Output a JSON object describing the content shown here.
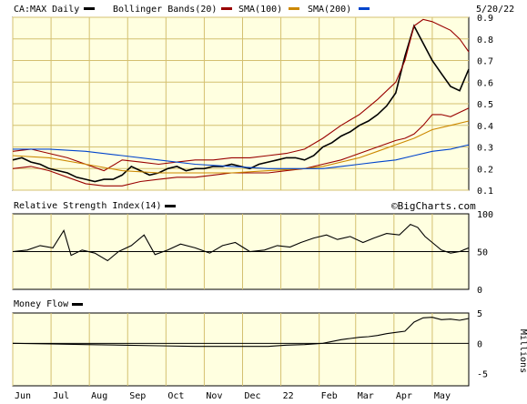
{
  "chart_data": [
    {
      "type": "line",
      "panel": "price",
      "title": "CA:MAX Daily",
      "date_label": "5/20/22",
      "ylim": [
        0.1,
        0.9
      ],
      "yticks": [
        "0.9",
        "0.8",
        "0.7",
        "0.6",
        "0.5",
        "0.4",
        "0.3",
        "0.2",
        "0.1"
      ],
      "grid": true,
      "legend_placement": "top",
      "legend": [
        {
          "name": "CA:MAX Daily",
          "color": "#000000"
        },
        {
          "name": "Bollinger Bands(20)",
          "color": "#990000"
        },
        {
          "name": "SMA(100)",
          "color": "#cc8800"
        },
        {
          "name": "SMA(200)",
          "color": "#0044cc"
        }
      ],
      "x_months": [
        "Jun",
        "Jul",
        "Aug",
        "Sep",
        "Oct",
        "Nov",
        "Dec",
        "22",
        "Feb",
        "Mar",
        "Apr",
        "May"
      ],
      "series": [
        {
          "name": "CA:MAX Daily",
          "color": "#000000",
          "x": [
            0,
            5,
            10,
            15,
            20,
            25,
            30,
            35,
            40,
            45,
            50,
            55,
            60,
            65,
            70,
            75,
            80,
            85,
            90,
            95,
            100,
            105,
            110,
            115,
            120,
            125,
            130,
            135,
            140,
            145,
            150,
            155,
            160,
            165,
            170,
            175,
            180,
            185,
            190,
            195,
            200,
            205,
            210,
            215,
            220,
            225,
            230,
            235,
            240,
            245,
            250
          ],
          "values": [
            0.24,
            0.25,
            0.23,
            0.22,
            0.2,
            0.19,
            0.18,
            0.16,
            0.15,
            0.14,
            0.15,
            0.15,
            0.17,
            0.21,
            0.19,
            0.17,
            0.18,
            0.2,
            0.21,
            0.19,
            0.2,
            0.2,
            0.21,
            0.21,
            0.22,
            0.21,
            0.2,
            0.22,
            0.23,
            0.24,
            0.25,
            0.25,
            0.24,
            0.26,
            0.3,
            0.32,
            0.35,
            0.37,
            0.4,
            0.42,
            0.45,
            0.49,
            0.55,
            0.72,
            0.86,
            0.78,
            0.7,
            0.64,
            0.58,
            0.56,
            0.66
          ]
        },
        {
          "name": "Bollinger Bands(20)",
          "color": "#990000",
          "x": [
            0,
            10,
            20,
            30,
            40,
            50,
            60,
            70,
            80,
            90,
            100,
            110,
            120,
            130,
            140,
            150,
            160,
            170,
            180,
            190,
            200,
            210,
            215,
            220,
            225,
            230,
            235,
            240,
            245,
            250
          ],
          "values": [
            0.28,
            0.29,
            0.27,
            0.25,
            0.22,
            0.19,
            0.24,
            0.23,
            0.22,
            0.23,
            0.24,
            0.24,
            0.25,
            0.25,
            0.26,
            0.27,
            0.29,
            0.34,
            0.4,
            0.45,
            0.52,
            0.6,
            0.7,
            0.86,
            0.89,
            0.88,
            0.86,
            0.84,
            0.8,
            0.74
          ]
        },
        {
          "name": "Bollinger Bands(20) lower",
          "color": "#990000",
          "x": [
            0,
            10,
            20,
            30,
            40,
            50,
            60,
            70,
            80,
            90,
            100,
            110,
            120,
            130,
            140,
            150,
            160,
            170,
            180,
            190,
            200,
            210,
            215,
            220,
            225,
            230,
            235,
            240,
            245,
            250
          ],
          "values": [
            0.2,
            0.21,
            0.19,
            0.16,
            0.13,
            0.12,
            0.12,
            0.14,
            0.15,
            0.16,
            0.16,
            0.17,
            0.18,
            0.18,
            0.18,
            0.19,
            0.2,
            0.22,
            0.24,
            0.27,
            0.3,
            0.33,
            0.34,
            0.36,
            0.4,
            0.45,
            0.45,
            0.44,
            0.46,
            0.48
          ]
        },
        {
          "name": "SMA(100)",
          "color": "#cc8800",
          "x": [
            0,
            20,
            40,
            60,
            80,
            100,
            120,
            140,
            160,
            170,
            180,
            190,
            200,
            210,
            220,
            230,
            240,
            250
          ],
          "values": [
            0.26,
            0.25,
            0.22,
            0.19,
            0.18,
            0.18,
            0.18,
            0.19,
            0.2,
            0.21,
            0.23,
            0.25,
            0.28,
            0.31,
            0.34,
            0.38,
            0.4,
            0.42
          ]
        },
        {
          "name": "SMA(200)",
          "color": "#0044cc",
          "x": [
            0,
            20,
            40,
            60,
            80,
            100,
            120,
            140,
            160,
            170,
            180,
            190,
            200,
            210,
            220,
            230,
            240,
            250
          ],
          "values": [
            0.29,
            0.29,
            0.28,
            0.26,
            0.24,
            0.22,
            0.21,
            0.2,
            0.2,
            0.2,
            0.21,
            0.22,
            0.23,
            0.24,
            0.26,
            0.28,
            0.29,
            0.31
          ]
        }
      ]
    },
    {
      "type": "line",
      "panel": "rsi",
      "title": "Relative Strength Index(14)",
      "watermark": "©BigCharts.com",
      "ylim": [
        0,
        100
      ],
      "yticks": [
        "100",
        "50",
        "0"
      ],
      "reference_line": 50,
      "series": [
        {
          "name": "Relative Strength Index(14)",
          "color": "#000000",
          "x": [
            0,
            8,
            15,
            22,
            28,
            32,
            38,
            45,
            52,
            58,
            65,
            72,
            78,
            85,
            92,
            100,
            108,
            115,
            122,
            130,
            138,
            145,
            152,
            158,
            165,
            172,
            178,
            185,
            192,
            198,
            205,
            212,
            218,
            222,
            226,
            230,
            235,
            240,
            245,
            250
          ],
          "values": [
            50,
            52,
            58,
            55,
            78,
            45,
            52,
            48,
            38,
            50,
            58,
            72,
            46,
            52,
            60,
            55,
            48,
            58,
            62,
            50,
            52,
            58,
            56,
            62,
            68,
            72,
            66,
            70,
            62,
            68,
            74,
            72,
            86,
            82,
            70,
            62,
            52,
            48,
            50,
            55
          ]
        }
      ]
    },
    {
      "type": "line",
      "panel": "money_flow",
      "title": "Money Flow",
      "yticks": [
        "5",
        "0",
        "-5"
      ],
      "ylabel": "Millions",
      "ylim": [
        -7,
        5
      ],
      "reference_line": 0,
      "series": [
        {
          "name": "Money Flow",
          "color": "#000000",
          "x": [
            0,
            20,
            40,
            60,
            80,
            100,
            120,
            140,
            150,
            160,
            170,
            175,
            180,
            185,
            190,
            195,
            200,
            205,
            210,
            215,
            220,
            225,
            230,
            235,
            240,
            245,
            250
          ],
          "values": [
            0.0,
            -0.1,
            -0.2,
            -0.3,
            -0.4,
            -0.5,
            -0.5,
            -0.5,
            -0.3,
            -0.2,
            0.0,
            0.3,
            0.6,
            0.8,
            1.0,
            1.1,
            1.3,
            1.6,
            1.8,
            2.0,
            3.5,
            4.2,
            4.3,
            3.9,
            4.0,
            3.8,
            4.1
          ]
        }
      ]
    }
  ]
}
